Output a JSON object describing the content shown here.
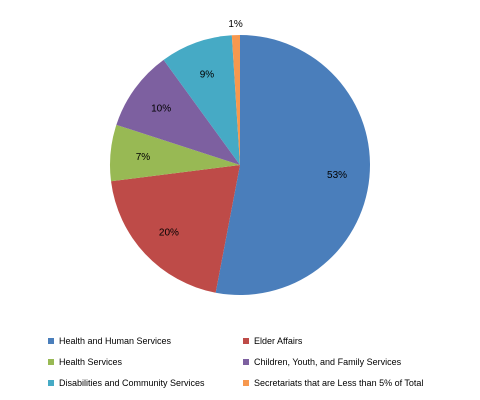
{
  "chart_data": {
    "type": "pie",
    "categories": [
      "Health and Human Services",
      "Elder Affairs",
      "Health Services",
      "Children, Youth, and Family Services",
      "Disabilities and Community Services",
      "Secretariats that are Less than 5% of Total"
    ],
    "values": [
      53,
      20,
      7,
      10,
      9,
      1
    ],
    "labels": [
      "53%",
      "20%",
      "7%",
      "10%",
      "9%",
      "1%"
    ],
    "colors": [
      "#4a7ebb",
      "#be4b48",
      "#98b954",
      "#7d60a0",
      "#46aac5",
      "#f7984e"
    ],
    "start_angle": "12 o'clock",
    "direction": "clockwise",
    "legend_position": "bottom"
  }
}
